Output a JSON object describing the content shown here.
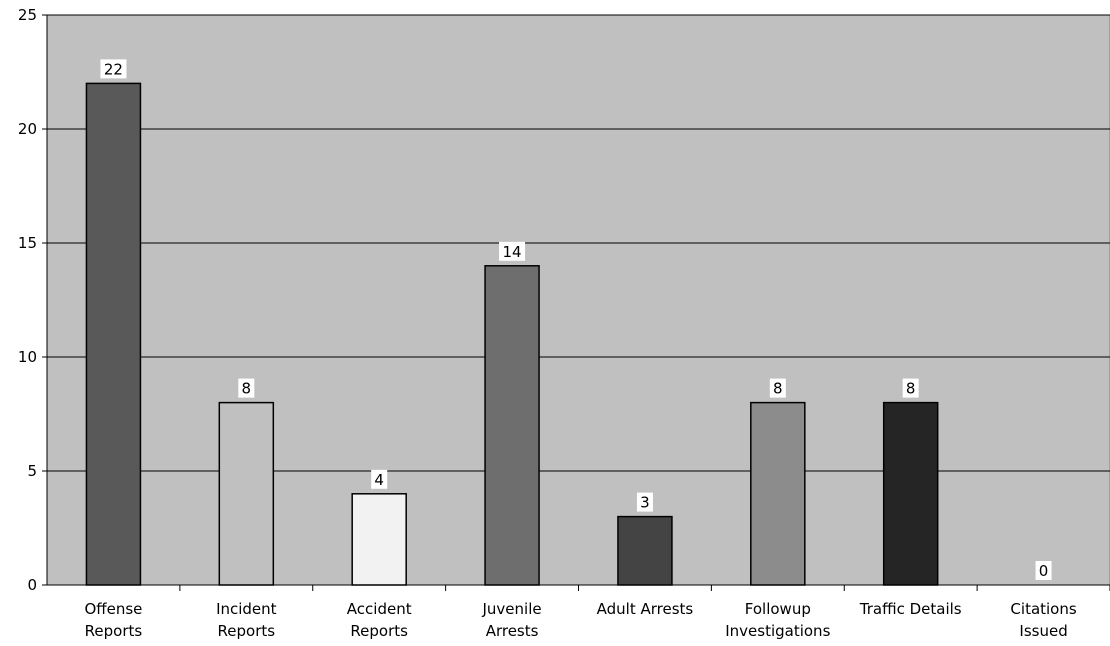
{
  "chart_data": {
    "type": "bar",
    "categories": [
      [
        "Offense",
        "Reports"
      ],
      [
        "Incident",
        "Reports"
      ],
      [
        "Accident",
        "Reports"
      ],
      [
        "Juvenile",
        "Arrests"
      ],
      [
        "Adult Arrests"
      ],
      [
        "Followup",
        "Investigations"
      ],
      [
        "Traffic Details"
      ],
      [
        "Citations",
        "Issued"
      ]
    ],
    "values": [
      22,
      8,
      4,
      14,
      3,
      8,
      8,
      0
    ],
    "bar_colors": [
      "#595959",
      "#c0c0c0",
      "#f2f2f2",
      "#6e6e6e",
      "#444444",
      "#8c8c8c",
      "#252525",
      "#ffffff"
    ],
    "ylim": [
      0,
      25
    ],
    "yticks": [
      0,
      5,
      10,
      15,
      20,
      25
    ],
    "grid": true,
    "plot_background": "#c0c0c0",
    "title": "",
    "xlabel": "",
    "ylabel": ""
  }
}
